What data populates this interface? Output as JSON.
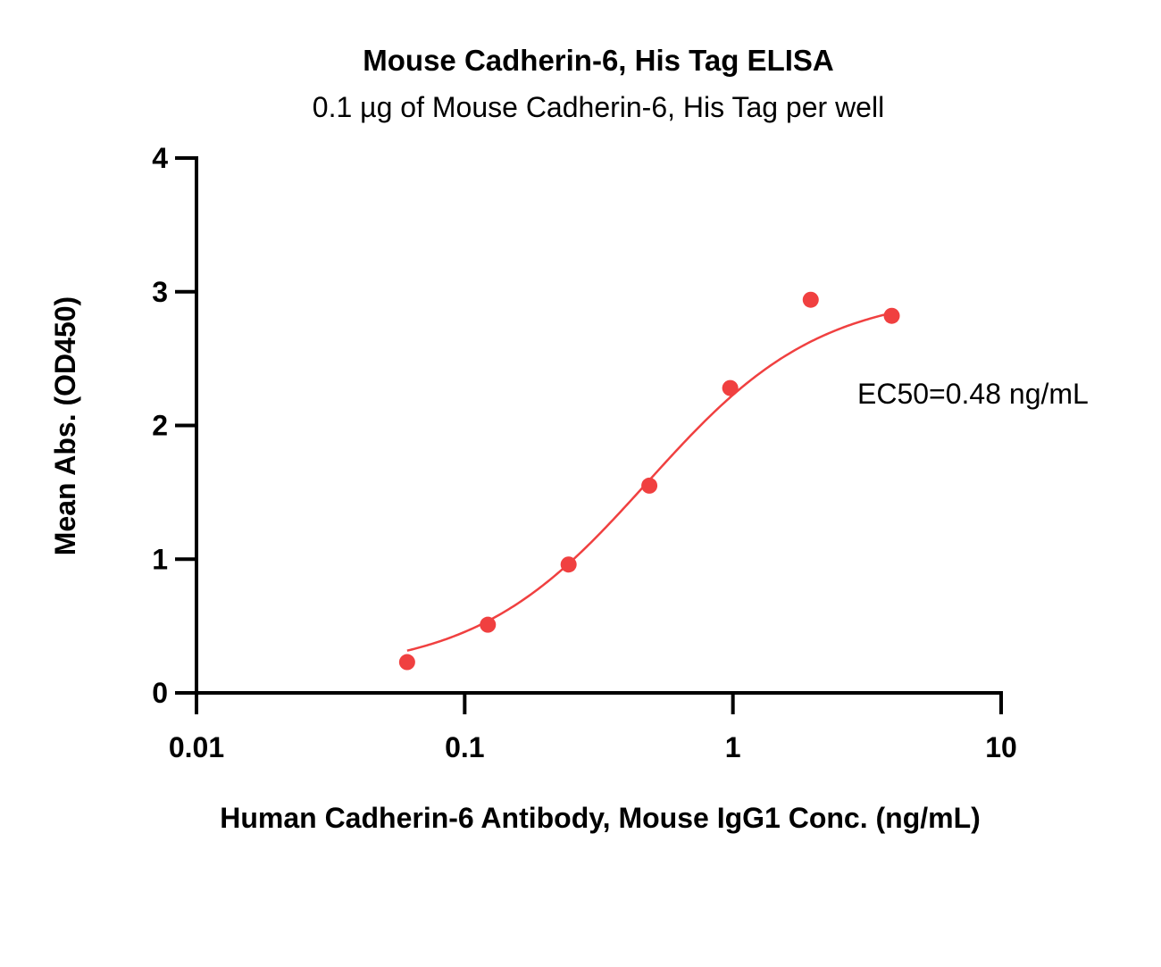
{
  "chart_data": {
    "type": "scatter",
    "title": "Mouse Cadherin-6, His Tag ELISA",
    "subtitle": "0.1 µg of Mouse Cadherin-6, His Tag per well",
    "xlabel": "Human Cadherin-6 Antibody, Mouse IgG1 Conc. (ng/mL)",
    "ylabel": "Mean Abs. (OD450)",
    "x_scale": "log",
    "xlim": [
      0.01,
      10
    ],
    "ylim": [
      0,
      4
    ],
    "x_ticks": [
      0.01,
      0.1,
      1,
      10
    ],
    "x_tick_labels": [
      "0.01",
      "0.1",
      "1",
      "10"
    ],
    "y_ticks": [
      0,
      1,
      2,
      3,
      4
    ],
    "y_tick_labels": [
      "0",
      "1",
      "2",
      "3",
      "4"
    ],
    "grid": false,
    "series": [
      {
        "x": [
          0.061,
          0.122,
          0.244,
          0.488,
          0.977,
          1.95,
          3.91
        ],
        "y": [
          0.23,
          0.51,
          0.96,
          1.55,
          2.28,
          2.94,
          2.82
        ],
        "color": "#f04040"
      }
    ],
    "fit_curve": {
      "color": "#f04040",
      "x_range": [
        0.061,
        3.91
      ],
      "bottom": 0.15,
      "top": 3.0,
      "ec50": 0.48,
      "hill": 1.35
    },
    "annotations": [
      {
        "text": "EC50=0.48 ng/mL",
        "placement": "right of curve"
      }
    ]
  }
}
